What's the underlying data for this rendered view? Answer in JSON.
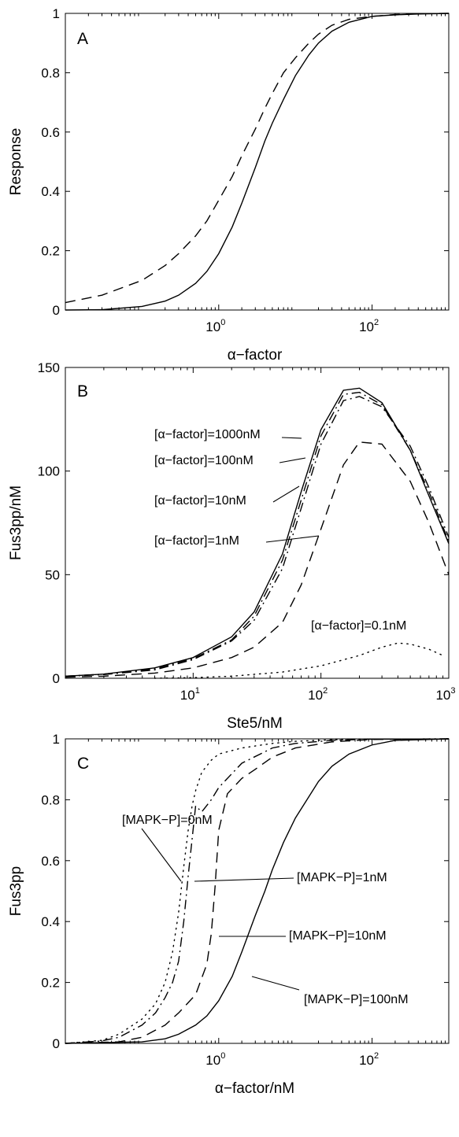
{
  "chart_data": [
    {
      "type": "line",
      "panel_label": "A",
      "xlabel": "α−factor",
      "ylabel": "Response",
      "xscale": "log",
      "xlim": [
        0.01,
        1000
      ],
      "ylim": [
        0,
        1
      ],
      "x_ticks": [
        {
          "base": "10",
          "exp": "0",
          "value": 1
        },
        {
          "base": "10",
          "exp": "2",
          "value": 100
        }
      ],
      "y_ticks": [
        "0",
        "0.2",
        "0.4",
        "0.6",
        "0.8",
        "1"
      ],
      "grid": false,
      "series": [
        {
          "style": "solid",
          "x": [
            0.01,
            0.03,
            0.1,
            0.2,
            0.3,
            0.5,
            0.7,
            1,
            1.5,
            2,
            3,
            4,
            5,
            7,
            10,
            15,
            20,
            30,
            50,
            100,
            200,
            400,
            1000
          ],
          "y": [
            0.0,
            0.001,
            0.012,
            0.03,
            0.05,
            0.09,
            0.13,
            0.19,
            0.28,
            0.36,
            0.48,
            0.57,
            0.63,
            0.71,
            0.79,
            0.86,
            0.9,
            0.94,
            0.97,
            0.99,
            0.995,
            0.998,
            1.0
          ]
        },
        {
          "style": "dashed",
          "x": [
            0.01,
            0.03,
            0.1,
            0.2,
            0.3,
            0.5,
            0.7,
            1,
            1.5,
            2,
            3,
            4,
            5,
            7,
            10,
            15,
            20,
            30,
            50,
            100,
            200,
            400,
            1000
          ],
          "y": [
            0.025,
            0.05,
            0.1,
            0.15,
            0.19,
            0.25,
            0.3,
            0.37,
            0.45,
            0.52,
            0.61,
            0.68,
            0.73,
            0.8,
            0.85,
            0.9,
            0.93,
            0.96,
            0.98,
            0.99,
            0.996,
            0.999,
            1.0
          ]
        }
      ]
    },
    {
      "type": "line",
      "panel_label": "B",
      "xlabel": "Ste5/nM",
      "ylabel": "Fus3pp/nM",
      "xscale": "log",
      "xlim": [
        1,
        1000
      ],
      "ylim": [
        0,
        150
      ],
      "x_ticks": [
        {
          "base": "10",
          "exp": "1",
          "value": 10
        },
        {
          "base": "10",
          "exp": "2",
          "value": 100
        },
        {
          "base": "10",
          "exp": "3",
          "value": 1000
        }
      ],
      "y_ticks": [
        "0",
        "50",
        "100",
        "150"
      ],
      "grid": false,
      "annotations": [
        "[α−factor]=1000nM",
        "[α−factor]=100nM",
        "[α−factor]=10nM",
        "[α−factor]=1nM",
        "[α−factor]=0.1nM"
      ],
      "series": [
        {
          "style": "solid",
          "x": [
            1,
            2,
            5,
            10,
            20,
            30,
            50,
            70,
            100,
            150,
            200,
            300,
            500,
            700,
            1000
          ],
          "y": [
            1,
            2,
            5,
            10,
            20,
            32,
            60,
            90,
            120,
            139,
            140,
            133,
            110,
            88,
            65
          ]
        },
        {
          "style": "dashdot",
          "x": [
            1,
            2,
            5,
            10,
            20,
            30,
            50,
            70,
            100,
            150,
            200,
            300,
            500,
            700,
            1000
          ],
          "y": [
            1,
            2,
            4.5,
            9.5,
            18.5,
            30,
            57,
            86,
            117,
            137,
            138,
            132,
            110,
            90,
            66
          ]
        },
        {
          "style": "dashdot",
          "x": [
            1,
            2,
            5,
            10,
            20,
            30,
            50,
            70,
            100,
            150,
            200,
            300,
            500,
            700,
            1000
          ],
          "y": [
            0.9,
            1.8,
            4,
            9,
            18,
            28,
            53,
            82,
            113,
            134,
            136,
            131,
            112,
            92,
            68
          ]
        },
        {
          "style": "dashed",
          "x": [
            1,
            2,
            5,
            10,
            20,
            30,
            50,
            70,
            100,
            150,
            200,
            300,
            500,
            700,
            1000
          ],
          "y": [
            0.5,
            1,
            2.5,
            5,
            10,
            15,
            27,
            45,
            72,
            103,
            114,
            113,
            95,
            75,
            50
          ]
        },
        {
          "style": "dotted",
          "x": [
            5,
            10,
            20,
            50,
            100,
            200,
            300,
            400,
            500,
            700,
            900
          ],
          "y": [
            0,
            0.3,
            1,
            3,
            6,
            11,
            15,
            17,
            16.5,
            14,
            11
          ]
        }
      ]
    },
    {
      "type": "line",
      "panel_label": "C",
      "xlabel": "α−factor/nM",
      "ylabel": "Fus3pp",
      "xscale": "log",
      "xlim": [
        0.01,
        1000
      ],
      "ylim": [
        0,
        1
      ],
      "x_ticks": [
        {
          "base": "10",
          "exp": "0",
          "value": 1
        },
        {
          "base": "10",
          "exp": "2",
          "value": 100
        }
      ],
      "y_ticks": [
        "0",
        "0.2",
        "0.4",
        "0.6",
        "0.8",
        "1"
      ],
      "grid": false,
      "annotations": [
        "[MAPK−P]=0nM",
        "[MAPK−P]=1nM",
        "[MAPK−P]=10nM",
        "[MAPK−P]=100nM"
      ],
      "series": [
        {
          "style": "dotted",
          "x": [
            0.01,
            0.03,
            0.05,
            0.1,
            0.15,
            0.2,
            0.25,
            0.3,
            0.35,
            0.4,
            0.45,
            0.5,
            0.6,
            0.8,
            1,
            2,
            5,
            10,
            30,
            100,
            1000
          ],
          "y": [
            0.0,
            0.01,
            0.03,
            0.08,
            0.13,
            0.2,
            0.3,
            0.43,
            0.58,
            0.7,
            0.78,
            0.83,
            0.89,
            0.93,
            0.95,
            0.97,
            0.985,
            0.992,
            0.997,
            0.999,
            1.0
          ]
        },
        {
          "style": "dashdot",
          "x": [
            0.01,
            0.03,
            0.05,
            0.1,
            0.15,
            0.2,
            0.25,
            0.3,
            0.35,
            0.4,
            0.5,
            0.6,
            0.8,
            1,
            2,
            5,
            10,
            30,
            100,
            1000
          ],
          "y": [
            0.0,
            0.008,
            0.02,
            0.06,
            0.1,
            0.15,
            0.2,
            0.27,
            0.4,
            0.55,
            0.78,
            0.76,
            0.8,
            0.84,
            0.92,
            0.97,
            0.985,
            0.995,
            0.999,
            1.0
          ]
        },
        {
          "style": "dashed",
          "x": [
            0.01,
            0.05,
            0.1,
            0.2,
            0.3,
            0.5,
            0.7,
            0.8,
            0.9,
            1,
            1.3,
            2,
            3,
            5,
            10,
            30,
            100,
            1000
          ],
          "y": [
            0.0,
            0.005,
            0.02,
            0.06,
            0.1,
            0.16,
            0.26,
            0.36,
            0.52,
            0.7,
            0.82,
            0.87,
            0.9,
            0.94,
            0.97,
            0.99,
            0.998,
            1.0
          ]
        },
        {
          "style": "solid",
          "x": [
            0.01,
            0.1,
            0.2,
            0.3,
            0.5,
            0.7,
            1,
            1.5,
            2,
            3,
            4,
            5,
            7,
            10,
            20,
            30,
            50,
            100,
            200,
            1000
          ],
          "y": [
            0.0,
            0.005,
            0.015,
            0.03,
            0.06,
            0.09,
            0.14,
            0.22,
            0.3,
            0.42,
            0.5,
            0.57,
            0.66,
            0.74,
            0.86,
            0.91,
            0.95,
            0.98,
            0.995,
            1.0
          ]
        }
      ]
    }
  ]
}
